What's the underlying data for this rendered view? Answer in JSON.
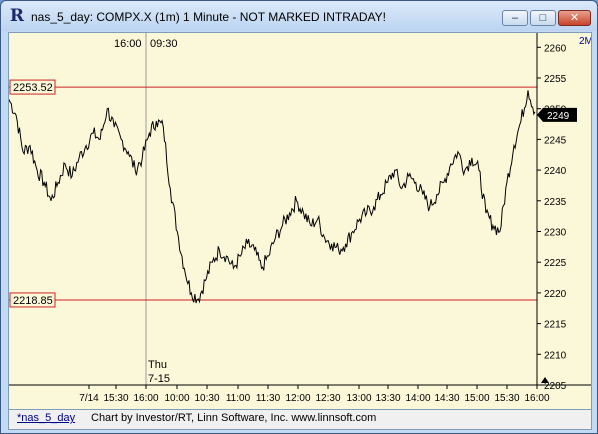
{
  "window": {
    "app_icon": "R",
    "title": "nas_5_day: COMPX.X (1m) 1 Minute - NOT MARKED INTRADAY!",
    "minimize_glyph": "–",
    "maximize_glyph": "□",
    "close_glyph": "✕",
    "minimize_icon": "minimize-icon",
    "maximize_icon": "maximize-icon",
    "close_icon": "close-icon"
  },
  "chart": {
    "top_left_time": "16:00",
    "top_session_time": "09:30",
    "session_marker_day": "Thu",
    "session_marker_date": "7-15",
    "corner_label": "2M",
    "current_price": "2249",
    "colors": {
      "background": "#fbf8d9",
      "price_line": "#000000",
      "horizontal_levels": "#cc2222",
      "session_divider": "#9a9a9a"
    }
  },
  "chart_data": {
    "type": "line",
    "series": [
      {
        "values": [
          2251.5,
          2249,
          2243,
          2244,
          2240,
          2238,
          2235,
          2238,
          2241,
          2239,
          2242,
          2244,
          2246,
          2245,
          2250,
          2247,
          2245,
          2243,
          2240,
          2242,
          2246,
          2248,
          2247,
          2237,
          2230,
          2224,
          2220,
          2219,
          2222,
          2225,
          2227,
          2226,
          2224,
          2226,
          2228,
          2227,
          2224,
          2226,
          2229,
          2231,
          2233,
          2235,
          2233,
          2231,
          2232,
          2229,
          2228,
          2227,
          2228,
          2230,
          2232,
          2233,
          2234,
          2236,
          2238,
          2240,
          2237,
          2239,
          2238,
          2236,
          2234,
          2236,
          2238,
          2241,
          2243,
          2240,
          2242,
          2240,
          2233,
          2231,
          2230,
          2238,
          2244,
          2248,
          2253,
          2249.5
        ]
      }
    ],
    "xlabel": "",
    "ylabel": "",
    "x_tick_labels": [
      "7/14",
      "15:30",
      "16:00",
      "10:00",
      "10:30",
      "11:00",
      "11:30",
      "12:00",
      "12:30",
      "13:00",
      "13:30",
      "14:00",
      "14:30",
      "15:00",
      "15:30",
      "16:00"
    ],
    "y_tick_labels": [
      "2205",
      "2210",
      "2215",
      "2220",
      "2225",
      "2230",
      "2235",
      "2240",
      "2245",
      "2250",
      "2255",
      "2260"
    ],
    "ylim": [
      2205,
      2262
    ],
    "horizontal_lines": [
      {
        "label": "2253.52",
        "value": 2253.52
      },
      {
        "label": "2218.85",
        "value": 2218.85
      }
    ],
    "last_value_label": "2249",
    "grid": false
  },
  "status_bar": {
    "tab_label": "*nas_5_day",
    "credit": "Chart by Investor/RT, Linn Software, Inc. www.linnsoft.com"
  }
}
